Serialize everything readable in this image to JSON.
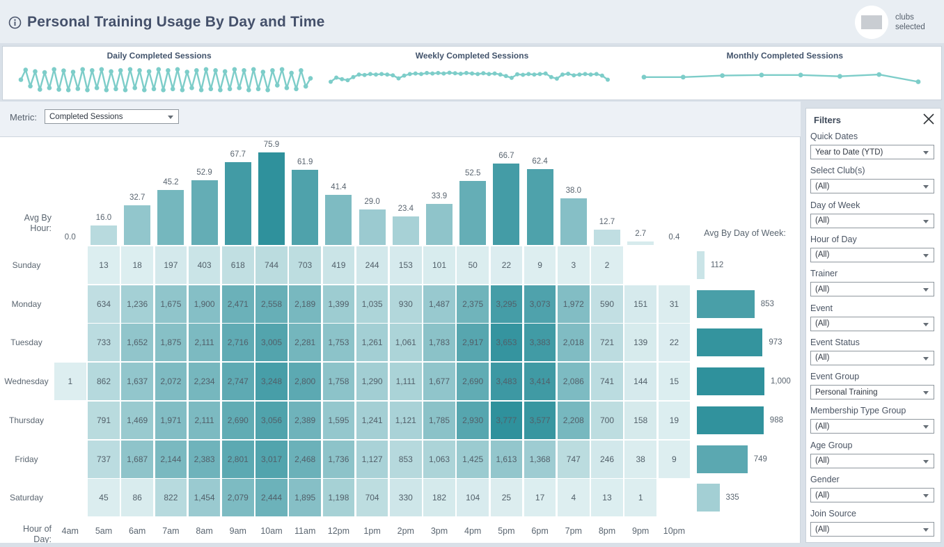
{
  "header": {
    "title": "Personal Training Usage By Day and Time",
    "clubs_selected_label": "clubs selected"
  },
  "metric": {
    "label": "Metric:",
    "value": "Completed Sessions"
  },
  "colors": {
    "accent_sparkline": "#7dcdc9",
    "heat_light": "#ddeef0",
    "heat_dark": "#2f919c",
    "panel_bg": "#ffffff",
    "page_bg": "#d9e0e8",
    "header_bg": "#e9eef3"
  },
  "chart_data": [
    {
      "type": "line",
      "title": "Daily Completed Sessions",
      "note": "dense daily oscillation, values unreadable; normalized shape only",
      "approx_normalized_points": [
        0.5,
        0.88,
        0.25,
        0.82,
        0.12,
        0.78,
        0.18,
        0.9,
        0.12,
        0.85,
        0.1,
        0.8,
        0.15,
        0.9,
        0.1,
        0.86,
        0.18,
        0.9,
        0.1,
        0.82,
        0.14,
        0.86,
        0.1,
        0.9,
        0.18,
        0.86,
        0.1,
        0.82,
        0.14,
        0.9,
        0.1,
        0.86,
        0.14,
        0.9,
        0.1,
        0.8,
        0.18,
        0.86,
        0.1,
        0.9,
        0.14,
        0.86,
        0.1,
        0.82,
        0.14,
        0.9,
        0.18,
        0.86,
        0.1,
        0.9,
        0.14,
        0.8,
        0.1,
        0.86,
        0.28,
        0.9,
        0.18,
        0.76,
        0.14,
        0.86,
        0.24,
        0.55
      ]
    },
    {
      "type": "line",
      "title": "Weekly Completed Sessions",
      "note": "normalized shape only",
      "approx_normalized_points": [
        0.42,
        0.58,
        0.52,
        0.48,
        0.6,
        0.7,
        0.68,
        0.72,
        0.7,
        0.72,
        0.7,
        0.67,
        0.55,
        0.66,
        0.72,
        0.74,
        0.72,
        0.76,
        0.74,
        0.76,
        0.74,
        0.77,
        0.75,
        0.73,
        0.76,
        0.74,
        0.72,
        0.75,
        0.72,
        0.74,
        0.7,
        0.64,
        0.57,
        0.71,
        0.69,
        0.72,
        0.7,
        0.72,
        0.74,
        0.6,
        0.54,
        0.7,
        0.73,
        0.67,
        0.7,
        0.72,
        0.7,
        0.72,
        0.66,
        0.5
      ]
    },
    {
      "type": "line",
      "title": "Monthly Completed Sessions",
      "note": "normalized shape only",
      "approx_normalized_points": [
        0.6,
        0.6,
        0.66,
        0.68,
        0.68,
        0.63,
        0.7,
        0.42
      ]
    },
    {
      "type": "heatmap",
      "title": "Completed Sessions by Day and Hour",
      "x_axis_label": "Hour of Day:",
      "hours": [
        "4am",
        "5am",
        "6am",
        "7am",
        "8am",
        "9am",
        "10am",
        "11am",
        "12pm",
        "1pm",
        "2pm",
        "3pm",
        "4pm",
        "5pm",
        "6pm",
        "7pm",
        "8pm",
        "9pm",
        "10pm"
      ],
      "days": [
        "Sunday",
        "Monday",
        "Tuesday",
        "Wednesday",
        "Thursday",
        "Friday",
        "Saturday"
      ],
      "values": [
        [
          null,
          13,
          18,
          197,
          403,
          618,
          744,
          703,
          419,
          244,
          153,
          101,
          50,
          22,
          9,
          3,
          2,
          null,
          null
        ],
        [
          null,
          634,
          1236,
          1675,
          1900,
          2471,
          2558,
          2189,
          1399,
          1035,
          930,
          1487,
          2375,
          3295,
          3073,
          1972,
          590,
          151,
          31
        ],
        [
          null,
          733,
          1652,
          1875,
          2111,
          2716,
          3005,
          2281,
          1753,
          1261,
          1061,
          1783,
          2917,
          3653,
          3383,
          2018,
          721,
          139,
          22
        ],
        [
          1,
          862,
          1637,
          2072,
          2234,
          2747,
          3248,
          2800,
          1758,
          1290,
          1111,
          1677,
          2690,
          3483,
          3414,
          2086,
          741,
          144,
          15
        ],
        [
          null,
          791,
          1469,
          1971,
          2111,
          2690,
          3056,
          2389,
          1595,
          1241,
          1121,
          1785,
          2930,
          3777,
          3577,
          2208,
          700,
          158,
          19
        ],
        [
          null,
          737,
          1687,
          2144,
          2383,
          2801,
          3017,
          2468,
          1736,
          1127,
          853,
          1063,
          1425,
          1613,
          1368,
          747,
          246,
          38,
          9
        ],
        [
          null,
          45,
          86,
          822,
          1454,
          2079,
          2444,
          1895,
          1198,
          704,
          330,
          182,
          104,
          25,
          17,
          4,
          13,
          1,
          null
        ]
      ],
      "avg_by_hour": {
        "label": "Avg By Hour:",
        "values": [
          0.0,
          16.0,
          32.7,
          45.2,
          52.9,
          67.7,
          75.9,
          61.9,
          41.4,
          29.0,
          23.4,
          33.9,
          52.5,
          66.7,
          62.4,
          38.0,
          12.7,
          2.7,
          0.4
        ]
      },
      "avg_by_day_of_week": {
        "label": "Avg By Day of Week:",
        "values": [
          112,
          853,
          973,
          1000,
          988,
          749,
          335
        ]
      }
    }
  ],
  "filters": {
    "title": "Filters",
    "items": [
      {
        "label": "Quick Dates",
        "value": "Year to Date (YTD)"
      },
      {
        "label": "Select Club(s)",
        "value": "(All)"
      },
      {
        "label": "Day of Week",
        "value": "(All)"
      },
      {
        "label": "Hour of Day",
        "value": "(All)"
      },
      {
        "label": "Trainer",
        "value": "(All)"
      },
      {
        "label": "Event",
        "value": "(All)"
      },
      {
        "label": "Event Status",
        "value": "(All)"
      },
      {
        "label": "Event Group",
        "value": "Personal Training"
      },
      {
        "label": "Membership Type Group",
        "value": "(All)"
      },
      {
        "label": "Age Group",
        "value": "(All)"
      },
      {
        "label": "Gender",
        "value": "(All)"
      },
      {
        "label": "Join Source",
        "value": "(All)"
      }
    ]
  }
}
